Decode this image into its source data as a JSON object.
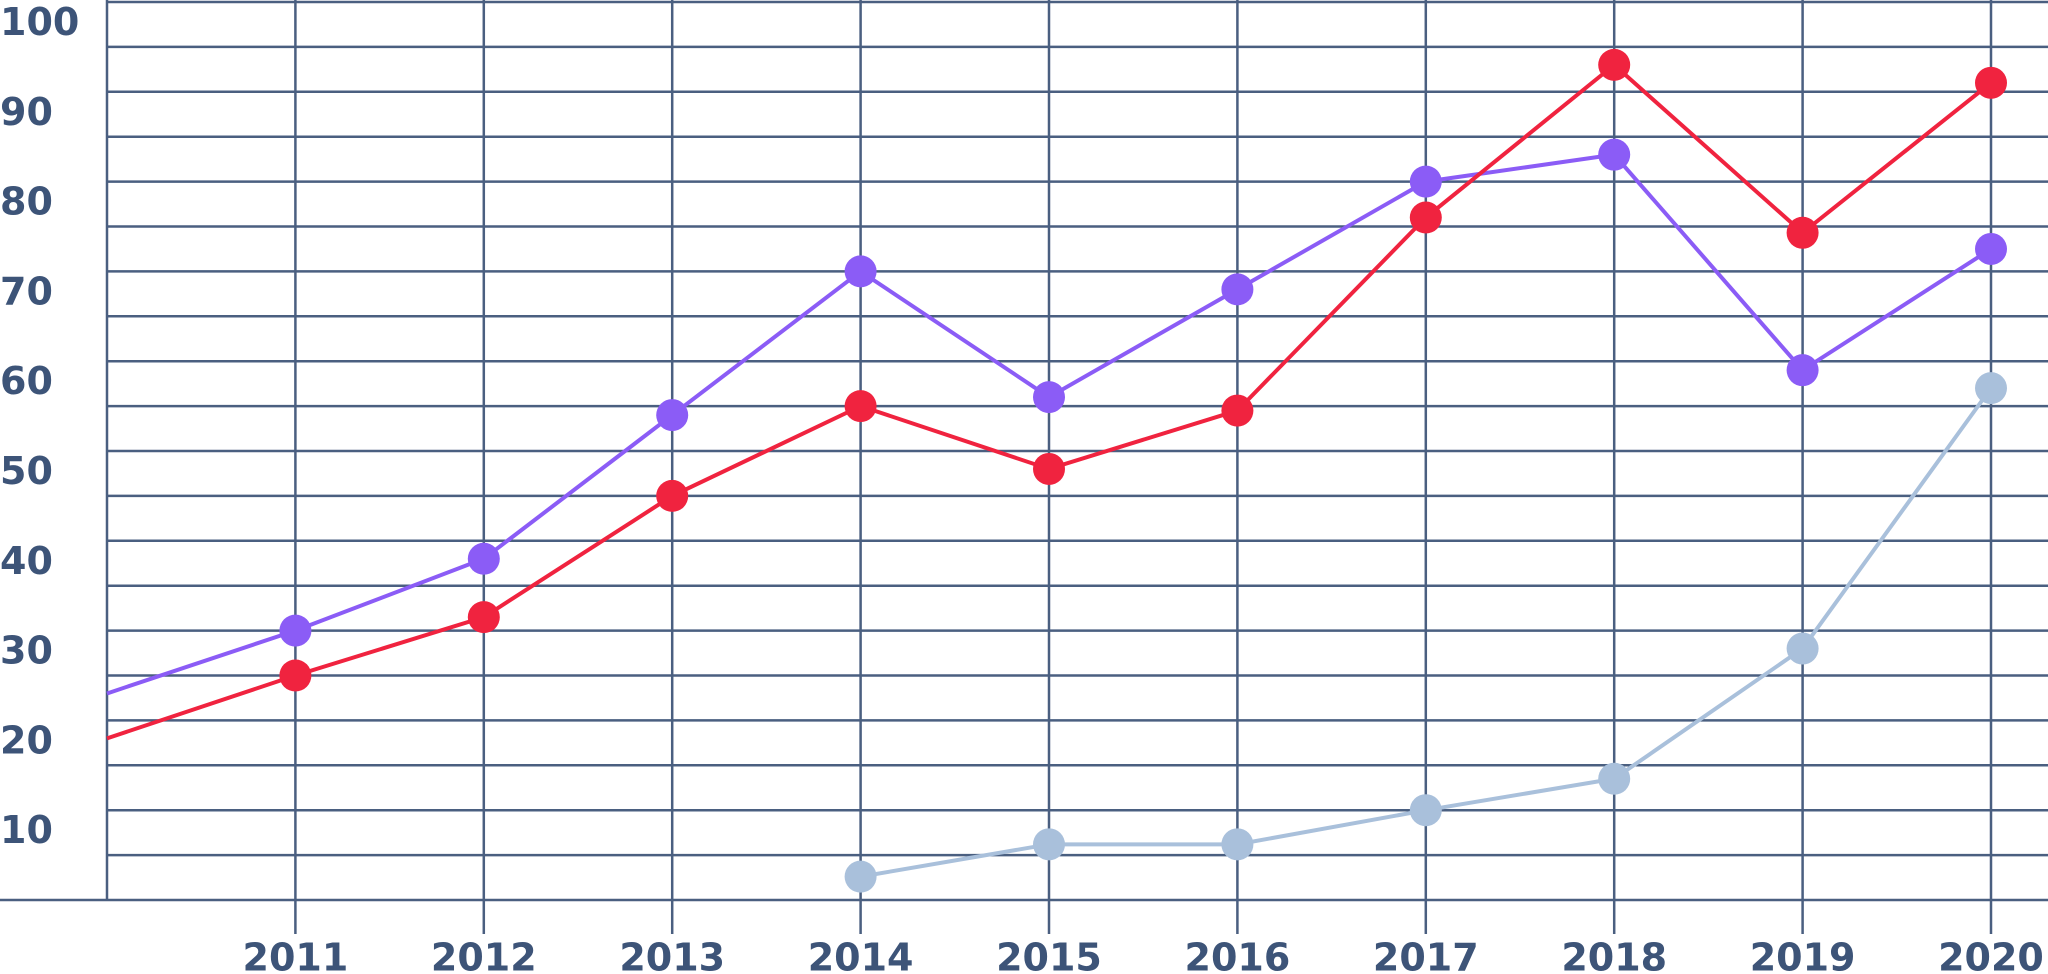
{
  "chart_data": {
    "type": "line",
    "x": [
      2010,
      2011,
      2012,
      2013,
      2014,
      2015,
      2016,
      2017,
      2018,
      2019,
      2020
    ],
    "xlim": [
      2010,
      2020
    ],
    "xticks": [
      2011,
      2012,
      2013,
      2014,
      2015,
      2016,
      2017,
      2018,
      2019,
      2020
    ],
    "ylim": [
      0,
      100
    ],
    "yticks": [
      10,
      20,
      30,
      40,
      50,
      60,
      70,
      80,
      90,
      100
    ],
    "minor_yticks": [
      5,
      15,
      25,
      35,
      45,
      55,
      65,
      75,
      85,
      95
    ],
    "grid": true,
    "series": [
      {
        "color": "#8b5cf6",
        "values": [
          23,
          30,
          38,
          54,
          70,
          56,
          68,
          80,
          83,
          59,
          72.5
        ]
      },
      {
        "color": "#f0233f",
        "values": [
          18,
          25,
          31.5,
          45,
          55,
          48,
          54.5,
          76,
          93,
          74.3,
          91
        ]
      },
      {
        "color": "#a9c0db",
        "values": [
          null,
          null,
          null,
          null,
          2.6,
          6.2,
          6.2,
          10,
          13.5,
          28,
          57
        ]
      }
    ]
  }
}
